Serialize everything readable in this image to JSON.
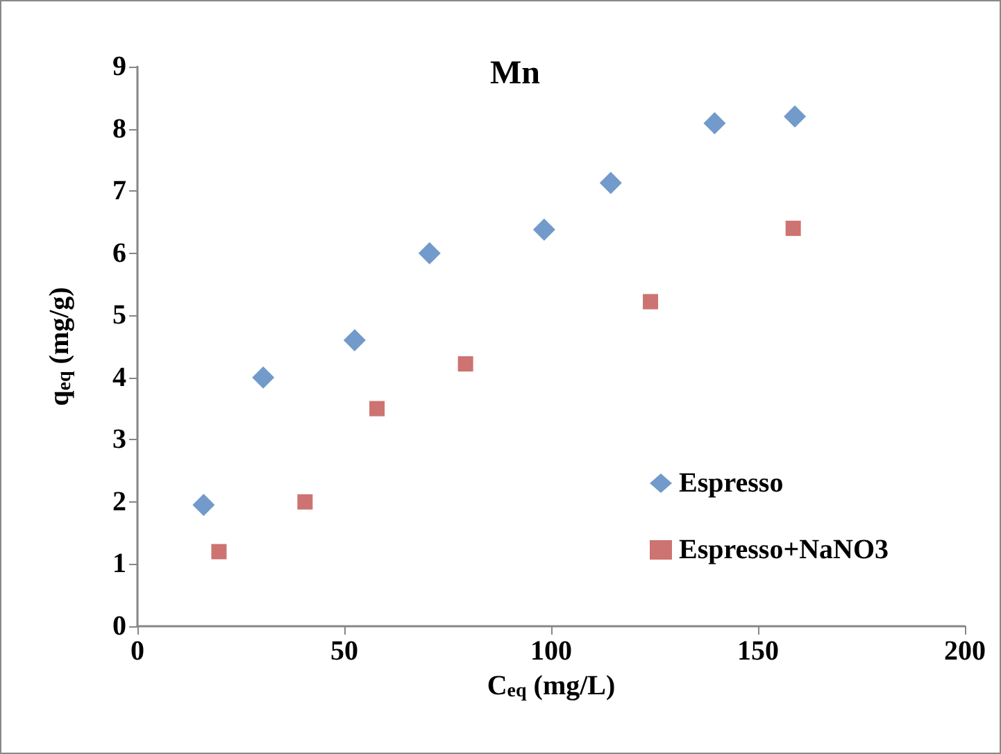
{
  "chart_data": {
    "type": "scatter",
    "title": "Mn",
    "xlabel": "C$_{eq}$ (mg/L)",
    "ylabel": "q$_{eq}$ (mg/g)",
    "xlim": [
      0,
      200
    ],
    "xticks": [
      0,
      50,
      100,
      150,
      200
    ],
    "ylim": [
      0,
      9
    ],
    "yticks": [
      0,
      1,
      2,
      3,
      4,
      5,
      6,
      7,
      8,
      9
    ],
    "legend": "right",
    "grid": false,
    "series": [
      {
        "name": "Espresso",
        "color": "#4f81bd",
        "marker": "diamond",
        "x": [
          16,
          30.4,
          52.5,
          70.6,
          98.3,
          114.4,
          139.5,
          158.9
        ],
        "values": [
          1.95,
          4.0,
          4.6,
          6.0,
          6.38,
          7.13,
          8.09,
          8.2
        ]
      },
      {
        "name": "Espresso+NaNO3",
        "color": "#c0504d",
        "marker": "square",
        "x": [
          19.7,
          40.5,
          57.9,
          79.3,
          124,
          158.5
        ],
        "values": [
          1.2,
          2.0,
          3.5,
          4.22,
          5.22,
          6.4
        ]
      }
    ]
  }
}
